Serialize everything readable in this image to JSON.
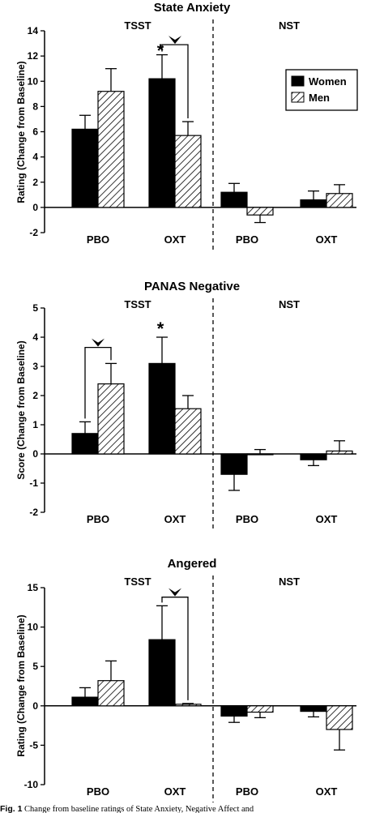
{
  "chart_data": [
    {
      "type": "bar",
      "title": "State Anxiety",
      "ylabel": "Rating (Change from Baseline)",
      "ylim": [
        -2,
        14
      ],
      "yticks": [
        -2,
        0,
        2,
        4,
        6,
        8,
        10,
        12,
        14
      ],
      "conditions": [
        "TSST",
        "NST"
      ],
      "categories": [
        "PBO",
        "OXT",
        "PBO",
        "OXT"
      ],
      "series": [
        {
          "name": "Women",
          "fill": "solid",
          "values": [
            6.2,
            10.2,
            1.2,
            0.6
          ],
          "errors": [
            1.1,
            1.9,
            0.7,
            0.7
          ]
        },
        {
          "name": "Men",
          "fill": "hatched",
          "values": [
            9.2,
            5.7,
            -0.6,
            1.1
          ],
          "errors": [
            1.8,
            1.1,
            0.6,
            0.7
          ]
        }
      ],
      "legend": "top-right",
      "annotations": [
        "*",
        "arrowhead bracket"
      ]
    },
    {
      "type": "bar",
      "title": "PANAS Negative",
      "ylabel": "Score (Change from Baseline)",
      "ylim": [
        -2,
        5
      ],
      "yticks": [
        -2,
        -1,
        0,
        1,
        2,
        3,
        4,
        5
      ],
      "conditions": [
        "TSST",
        "NST"
      ],
      "categories": [
        "PBO",
        "OXT",
        "PBO",
        "OXT"
      ],
      "series": [
        {
          "name": "Women",
          "fill": "solid",
          "values": [
            0.7,
            3.1,
            -0.7,
            -0.2
          ],
          "errors": [
            0.4,
            0.9,
            0.55,
            0.2
          ]
        },
        {
          "name": "Men",
          "fill": "hatched",
          "values": [
            2.4,
            1.55,
            0.0,
            0.1
          ],
          "errors": [
            0.7,
            0.45,
            0.15,
            0.35
          ]
        }
      ],
      "annotations": [
        "*",
        "arrowhead bracket"
      ]
    },
    {
      "type": "bar",
      "title": "Angered",
      "ylabel": "Rating (Change from Baseline)",
      "ylim": [
        -10,
        15
      ],
      "yticks": [
        -10,
        -5,
        0,
        5,
        10,
        15
      ],
      "conditions": [
        "TSST",
        "NST"
      ],
      "categories": [
        "PBO",
        "OXT",
        "PBO",
        "OXT"
      ],
      "series": [
        {
          "name": "Women",
          "fill": "solid",
          "values": [
            1.1,
            8.4,
            -1.3,
            -0.7
          ],
          "errors": [
            1.2,
            4.3,
            0.8,
            0.7
          ]
        },
        {
          "name": "Men",
          "fill": "hatched",
          "values": [
            3.2,
            0.2,
            -0.8,
            -3.0
          ],
          "errors": [
            2.5,
            0.1,
            0.7,
            2.6
          ]
        }
      ],
      "annotations": [
        "arrowhead bracket"
      ]
    }
  ],
  "caption": {
    "label": "Fig. 1",
    "text": "Change from baseline ratings of State Anxiety, Negative Affect and"
  },
  "colors": {
    "women": "#000000",
    "men_hatch": "#000000",
    "background": "#ffffff"
  }
}
